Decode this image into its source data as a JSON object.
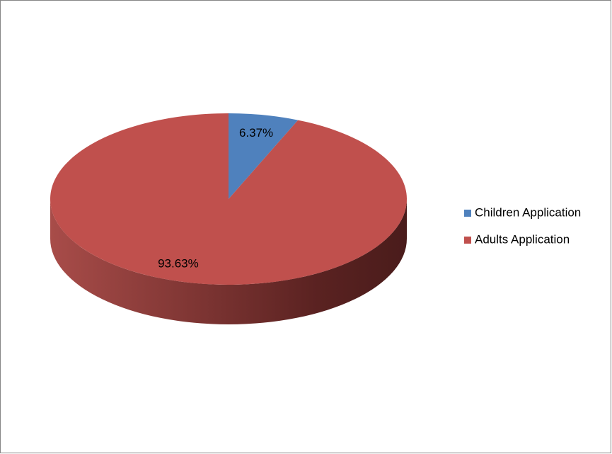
{
  "chart_data": {
    "type": "pie",
    "style": "3d",
    "categories": [
      "Children Application",
      "Adults Application"
    ],
    "values": [
      6.37,
      93.63
    ],
    "value_labels": [
      "6.37%",
      "93.63%"
    ],
    "colors": [
      "#4f81bd",
      "#c0504d"
    ],
    "legend": "right"
  }
}
